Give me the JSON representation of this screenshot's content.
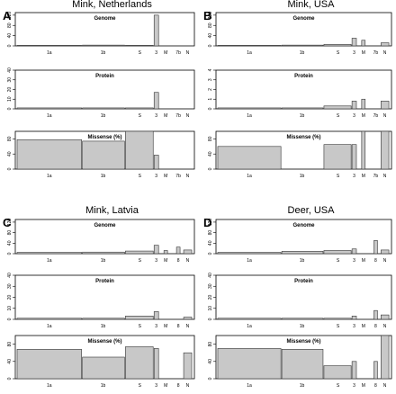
{
  "chart_data": [
    {
      "type": "bar",
      "panel": "A",
      "title": "Mink, Netherlands",
      "categories": [
        "1a",
        "1b",
        "S",
        "3",
        "M",
        "7b",
        "N"
      ],
      "subplots": [
        {
          "title": "Genome",
          "yticks": [
            0,
            40,
            80,
            120
          ],
          "ylim": [
            0,
            130
          ],
          "values": [
            2,
            3,
            2,
            120,
            0,
            0,
            0
          ]
        },
        {
          "title": "Protein",
          "yticks": [
            0,
            10,
            20,
            30,
            40
          ],
          "ylim": [
            0,
            40
          ],
          "values": [
            1,
            1,
            1,
            17,
            0,
            0,
            0
          ]
        },
        {
          "title": "Missense (%)",
          "yticks": [
            0,
            40,
            80
          ],
          "ylim": [
            0,
            100
          ],
          "values": [
            78,
            74,
            100,
            37,
            0,
            0,
            0
          ]
        }
      ]
    },
    {
      "type": "bar",
      "panel": "B",
      "title": "Mink, USA",
      "categories": [
        "1a",
        "1b",
        "S",
        "3",
        "M",
        "7b",
        "N"
      ],
      "subplots": [
        {
          "title": "Genome",
          "yticks": [
            0,
            40,
            80,
            120
          ],
          "ylim": [
            0,
            130
          ],
          "values": [
            2,
            3,
            6,
            30,
            22,
            0,
            12
          ]
        },
        {
          "title": "Protein",
          "yticks": [
            0,
            1,
            2,
            3,
            4
          ],
          "ylim": [
            0,
            4
          ],
          "values": [
            0.1,
            0.1,
            0.3,
            0.8,
            1.0,
            0,
            0.8
          ]
        },
        {
          "title": "Missense (%)",
          "yticks": [
            0,
            40,
            80
          ],
          "ylim": [
            0,
            100
          ],
          "values": [
            60,
            0,
            65,
            65,
            100,
            0,
            100
          ]
        }
      ]
    },
    {
      "type": "bar",
      "panel": "C",
      "title": "Mink, Latvia",
      "categories": [
        "1a",
        "1b",
        "S",
        "3",
        "M",
        "8",
        "N"
      ],
      "subplots": [
        {
          "title": "Genome",
          "yticks": [
            0,
            40,
            80,
            120
          ],
          "ylim": [
            0,
            130
          ],
          "values": [
            5,
            6,
            10,
            32,
            12,
            25,
            14
          ]
        },
        {
          "title": "Protein",
          "yticks": [
            0,
            10,
            20,
            30,
            40
          ],
          "ylim": [
            0,
            40
          ],
          "values": [
            1,
            1,
            3,
            7,
            0,
            0,
            2
          ]
        },
        {
          "title": "Missense (%)",
          "yticks": [
            0,
            40,
            80
          ],
          "ylim": [
            0,
            100
          ],
          "values": [
            68,
            50,
            74,
            70,
            0,
            0,
            60
          ]
        }
      ]
    },
    {
      "type": "bar",
      "panel": "D",
      "title": "Deer, USA",
      "categories": [
        "1a",
        "1b",
        "S",
        "3",
        "M",
        "8",
        "N"
      ],
      "subplots": [
        {
          "title": "Genome",
          "yticks": [
            0,
            40,
            80,
            120
          ],
          "ylim": [
            0,
            130
          ],
          "values": [
            5,
            9,
            12,
            18,
            0,
            50,
            14
          ]
        },
        {
          "title": "Protein",
          "yticks": [
            0,
            10,
            20,
            30,
            40
          ],
          "ylim": [
            0,
            40
          ],
          "values": [
            1,
            1,
            1,
            3,
            0,
            8,
            4
          ]
        },
        {
          "title": "Missense (%)",
          "yticks": [
            0,
            40,
            80
          ],
          "ylim": [
            0,
            100
          ],
          "values": [
            70,
            68,
            30,
            40,
            0,
            40,
            100
          ]
        }
      ]
    }
  ]
}
